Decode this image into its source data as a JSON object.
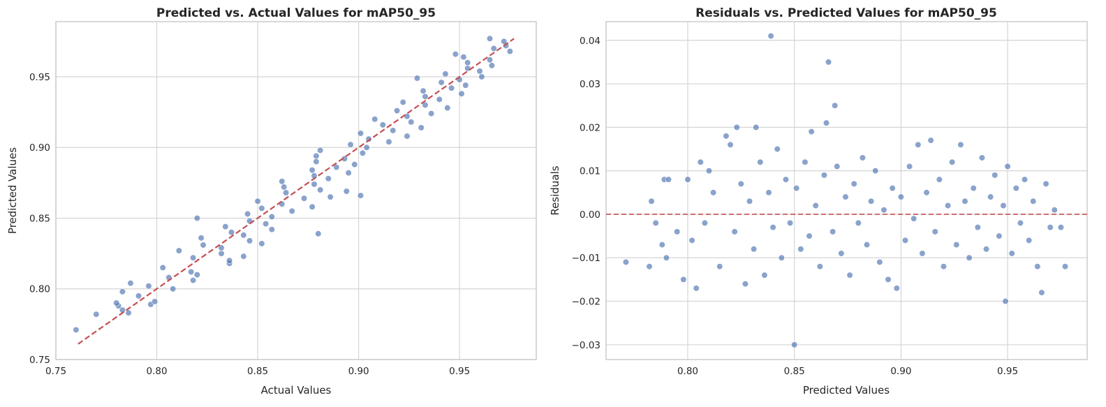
{
  "chart_data": [
    {
      "type": "scatter",
      "title": "Predicted vs. Actual Values for mAP50_95",
      "xlabel": "Actual Values",
      "ylabel": "Predicted Values",
      "xlim": [
        0.75,
        0.988
      ],
      "ylim": [
        0.75,
        0.989
      ],
      "xticks": [
        "0.75",
        "0.80",
        "0.85",
        "0.90",
        "0.95"
      ],
      "yticks": [
        "0.75",
        "0.80",
        "0.85",
        "0.90",
        "0.95"
      ],
      "grid": true,
      "point_color": "#4c72b0",
      "reference_line": {
        "type": "identity",
        "from": 0.761,
        "to": 0.977,
        "color": "#c44e52",
        "style": "dashed"
      },
      "x": [
        0.76,
        0.77,
        0.786,
        0.783,
        0.781,
        0.797,
        0.78,
        0.799,
        0.791,
        0.783,
        0.808,
        0.796,
        0.787,
        0.818,
        0.806,
        0.82,
        0.817,
        0.803,
        0.836,
        0.836,
        0.818,
        0.843,
        0.832,
        0.811,
        0.832,
        0.823,
        0.852,
        0.846,
        0.822,
        0.843,
        0.88,
        0.837,
        0.857,
        0.834,
        0.854,
        0.846,
        0.82,
        0.857,
        0.845,
        0.867,
        0.852,
        0.877,
        0.862,
        0.85,
        0.873,
        0.886,
        0.901,
        0.864,
        0.894,
        0.881,
        0.863,
        0.878,
        0.862,
        0.885,
        0.878,
        0.895,
        0.877,
        0.889,
        0.898,
        0.879,
        0.893,
        0.879,
        0.902,
        0.881,
        0.904,
        0.896,
        0.915,
        0.905,
        0.924,
        0.901,
        0.917,
        0.931,
        0.912,
        0.926,
        0.908,
        0.924,
        0.936,
        0.919,
        0.944,
        0.933,
        0.922,
        0.94,
        0.933,
        0.951,
        0.932,
        0.946,
        0.953,
        0.941,
        0.95,
        0.929,
        0.961,
        0.943,
        0.96,
        0.954,
        0.966,
        0.954,
        0.965,
        0.952,
        0.948,
        0.975,
        0.967,
        0.973,
        0.972,
        0.965
      ],
      "y": [
        0.771,
        0.782,
        0.783,
        0.785,
        0.788,
        0.789,
        0.79,
        0.791,
        0.795,
        0.798,
        0.8,
        0.802,
        0.804,
        0.806,
        0.808,
        0.81,
        0.812,
        0.815,
        0.818,
        0.82,
        0.822,
        0.823,
        0.825,
        0.827,
        0.829,
        0.831,
        0.832,
        0.834,
        0.836,
        0.838,
        0.839,
        0.84,
        0.842,
        0.844,
        0.846,
        0.848,
        0.85,
        0.851,
        0.853,
        0.855,
        0.857,
        0.858,
        0.86,
        0.862,
        0.864,
        0.865,
        0.866,
        0.868,
        0.869,
        0.87,
        0.872,
        0.874,
        0.876,
        0.878,
        0.88,
        0.882,
        0.884,
        0.886,
        0.888,
        0.89,
        0.892,
        0.894,
        0.896,
        0.898,
        0.9,
        0.902,
        0.904,
        0.906,
        0.908,
        0.91,
        0.912,
        0.914,
        0.916,
        0.918,
        0.92,
        0.922,
        0.924,
        0.926,
        0.928,
        0.93,
        0.932,
        0.934,
        0.936,
        0.938,
        0.94,
        0.942,
        0.944,
        0.946,
        0.948,
        0.949,
        0.95,
        0.952,
        0.954,
        0.956,
        0.958,
        0.96,
        0.962,
        0.964,
        0.966,
        0.968,
        0.97,
        0.972,
        0.975,
        0.977
      ]
    },
    {
      "type": "scatter",
      "title": "Residuals vs. Predicted Values for mAP50_95",
      "xlabel": "Predicted Values",
      "ylabel": "Residuals",
      "xlim": [
        0.7617,
        0.9873
      ],
      "ylim": [
        -0.0334,
        0.0443
      ],
      "xticks": [
        "0.80",
        "0.85",
        "0.90",
        "0.95"
      ],
      "yticks": [
        "−0.03",
        "−0.02",
        "−0.01",
        "0.00",
        "0.01",
        "0.02",
        "0.03",
        "0.04"
      ],
      "grid": true,
      "point_color": "#4c72b0",
      "reference_line": {
        "type": "horizontal",
        "y": 0,
        "color": "#c44e52",
        "style": "dashed"
      },
      "x": [
        0.771,
        0.782,
        0.783,
        0.785,
        0.788,
        0.789,
        0.79,
        0.791,
        0.795,
        0.798,
        0.8,
        0.802,
        0.804,
        0.806,
        0.808,
        0.81,
        0.812,
        0.815,
        0.818,
        0.82,
        0.822,
        0.823,
        0.825,
        0.827,
        0.829,
        0.831,
        0.832,
        0.834,
        0.836,
        0.838,
        0.839,
        0.84,
        0.842,
        0.844,
        0.846,
        0.848,
        0.85,
        0.851,
        0.853,
        0.855,
        0.857,
        0.858,
        0.86,
        0.862,
        0.864,
        0.865,
        0.866,
        0.868,
        0.869,
        0.87,
        0.872,
        0.874,
        0.876,
        0.878,
        0.88,
        0.882,
        0.884,
        0.886,
        0.888,
        0.89,
        0.892,
        0.894,
        0.896,
        0.898,
        0.9,
        0.902,
        0.904,
        0.906,
        0.908,
        0.91,
        0.912,
        0.914,
        0.916,
        0.918,
        0.92,
        0.922,
        0.924,
        0.926,
        0.928,
        0.93,
        0.932,
        0.934,
        0.936,
        0.938,
        0.94,
        0.942,
        0.944,
        0.946,
        0.948,
        0.949,
        0.95,
        0.952,
        0.954,
        0.956,
        0.958,
        0.96,
        0.962,
        0.964,
        0.966,
        0.968,
        0.97,
        0.972,
        0.975,
        0.977
      ],
      "y": [
        -0.011,
        -0.012,
        0.003,
        -0.002,
        -0.007,
        0.008,
        -0.01,
        0.008,
        -0.004,
        -0.015,
        0.008,
        -0.006,
        -0.017,
        0.012,
        -0.002,
        0.01,
        0.005,
        -0.012,
        0.018,
        0.016,
        -0.004,
        0.02,
        0.007,
        -0.016,
        0.003,
        -0.008,
        0.02,
        0.012,
        -0.014,
        0.005,
        0.041,
        -0.003,
        0.015,
        -0.01,
        0.008,
        -0.002,
        -0.03,
        0.006,
        -0.008,
        0.012,
        -0.005,
        0.019,
        0.002,
        -0.012,
        0.009,
        0.021,
        0.035,
        -0.004,
        0.025,
        0.011,
        -0.009,
        0.004,
        -0.014,
        0.007,
        -0.002,
        0.013,
        -0.007,
        0.003,
        0.01,
        -0.011,
        0.001,
        -0.015,
        0.006,
        -0.017,
        0.004,
        -0.006,
        0.011,
        -0.001,
        0.016,
        -0.009,
        0.005,
        0.017,
        -0.004,
        0.008,
        -0.012,
        0.002,
        0.012,
        -0.007,
        0.016,
        0.003,
        -0.01,
        0.006,
        -0.003,
        0.013,
        -0.008,
        0.004,
        0.009,
        -0.005,
        0.002,
        -0.02,
        0.011,
        -0.009,
        0.006,
        -0.002,
        0.008,
        -0.006,
        0.003,
        -0.012,
        -0.018,
        0.007,
        -0.003,
        0.001,
        -0.003,
        -0.012
      ]
    }
  ]
}
